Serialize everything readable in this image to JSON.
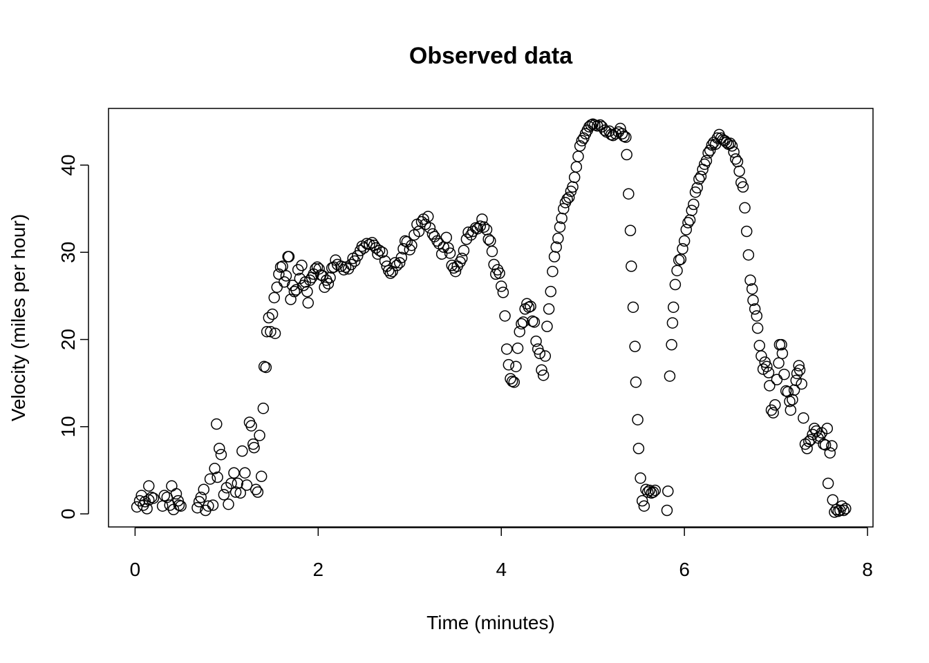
{
  "chart_data": {
    "type": "scatter",
    "title": "Observed data",
    "x_label": "Time (minutes)",
    "y_label": "Velocity (miles per hour)",
    "x": [
      0.02,
      0.05,
      0.07,
      0.09,
      0.11,
      0.13,
      0.15,
      0.15,
      0.18,
      0.2,
      0.3,
      0.32,
      0.35,
      0.38,
      0.4,
      0.42,
      0.45,
      0.47,
      0.48,
      0.5,
      0.68,
      0.7,
      0.72,
      0.75,
      0.77,
      0.8,
      0.82,
      0.85,
      0.87,
      0.89,
      0.9,
      0.92,
      0.94,
      0.97,
      1.0,
      1.02,
      1.05,
      1.08,
      1.1,
      1.12,
      1.15,
      1.17,
      1.2,
      1.22,
      1.25,
      1.27,
      1.29,
      1.3,
      1.32,
      1.34,
      1.36,
      1.38,
      1.4,
      1.41,
      1.43,
      1.44,
      1.46,
      1.48,
      1.5,
      1.52,
      1.53,
      1.55,
      1.57,
      1.59,
      1.61,
      1.63,
      1.65,
      1.67,
      1.68,
      1.7,
      1.72,
      1.74,
      1.76,
      1.78,
      1.8,
      1.82,
      1.84,
      1.86,
      1.88,
      1.89,
      1.91,
      1.93,
      1.95,
      1.97,
      1.99,
      2.01,
      2.03,
      2.05,
      2.07,
      2.09,
      2.11,
      2.13,
      2.15,
      2.17,
      2.19,
      2.21,
      2.25,
      2.28,
      2.3,
      2.33,
      2.36,
      2.38,
      2.4,
      2.43,
      2.46,
      2.48,
      2.5,
      2.53,
      2.56,
      2.59,
      2.61,
      2.63,
      2.65,
      2.67,
      2.7,
      2.73,
      2.75,
      2.77,
      2.79,
      2.81,
      2.84,
      2.86,
      2.89,
      2.91,
      2.93,
      2.95,
      2.97,
      3.0,
      3.02,
      3.05,
      3.08,
      3.1,
      3.13,
      3.15,
      3.17,
      3.2,
      3.22,
      3.25,
      3.27,
      3.3,
      3.32,
      3.35,
      3.37,
      3.4,
      3.42,
      3.44,
      3.46,
      3.48,
      3.5,
      3.52,
      3.55,
      3.57,
      3.59,
      3.62,
      3.64,
      3.67,
      3.69,
      3.72,
      3.74,
      3.77,
      3.79,
      3.81,
      3.84,
      3.86,
      3.88,
      3.9,
      3.92,
      3.94,
      3.96,
      3.98,
      4.0,
      4.02,
      4.04,
      4.06,
      4.08,
      4.1,
      4.12,
      4.14,
      4.16,
      4.18,
      4.2,
      4.22,
      4.24,
      4.26,
      4.28,
      4.3,
      4.32,
      4.34,
      4.36,
      4.38,
      4.4,
      4.42,
      4.44,
      4.46,
      4.48,
      4.5,
      4.52,
      4.54,
      4.56,
      4.58,
      4.6,
      4.62,
      4.64,
      4.66,
      4.68,
      4.7,
      4.72,
      4.74,
      4.76,
      4.78,
      4.8,
      4.82,
      4.84,
      4.86,
      4.88,
      4.9,
      4.92,
      4.94,
      4.96,
      4.98,
      5.0,
      5.02,
      5.05,
      5.08,
      5.1,
      5.13,
      5.15,
      5.18,
      5.2,
      5.22,
      5.25,
      5.28,
      5.3,
      5.32,
      5.34,
      5.36,
      5.37,
      5.39,
      5.41,
      5.42,
      5.44,
      5.46,
      5.47,
      5.49,
      5.5,
      5.52,
      5.54,
      5.56,
      5.58,
      5.6,
      5.62,
      5.64,
      5.66,
      5.68,
      5.81,
      5.82,
      5.84,
      5.86,
      5.87,
      5.88,
      5.9,
      5.92,
      5.94,
      5.96,
      5.98,
      6.0,
      6.02,
      6.04,
      6.06,
      6.08,
      6.1,
      6.12,
      6.14,
      6.16,
      6.18,
      6.2,
      6.22,
      6.24,
      6.26,
      6.28,
      6.3,
      6.32,
      6.34,
      6.36,
      6.38,
      6.4,
      6.42,
      6.44,
      6.46,
      6.48,
      6.5,
      6.52,
      6.54,
      6.56,
      6.58,
      6.6,
      6.62,
      6.64,
      6.66,
      6.68,
      6.7,
      6.72,
      6.74,
      6.75,
      6.77,
      6.79,
      6.8,
      6.82,
      6.84,
      6.86,
      6.88,
      6.9,
      6.92,
      6.93,
      6.95,
      6.97,
      6.99,
      7.01,
      7.03,
      7.04,
      7.06,
      7.07,
      7.09,
      7.11,
      7.13,
      7.15,
      7.16,
      7.18,
      7.2,
      7.22,
      7.23,
      7.25,
      7.26,
      7.28,
      7.3,
      7.32,
      7.34,
      7.36,
      7.38,
      7.4,
      7.42,
      7.44,
      7.46,
      7.48,
      7.5,
      7.52,
      7.54,
      7.56,
      7.57,
      7.59,
      7.61,
      7.62,
      7.64,
      7.66,
      7.68,
      7.7,
      7.72,
      7.74,
      7.76
    ],
    "values": [
      0.8,
      1.5,
      2.1,
      1.0,
      1.4,
      0.6,
      1.6,
      3.2,
      1.9,
      1.8,
      0.9,
      2.1,
      1.9,
      1.0,
      3.2,
      0.5,
      2.3,
      1.5,
      1.0,
      0.9,
      0.7,
      1.4,
      1.9,
      2.8,
      0.4,
      0.9,
      4.0,
      1.0,
      5.2,
      10.3,
      4.2,
      7.5,
      6.8,
      2.2,
      3.0,
      1.1,
      3.5,
      4.7,
      2.5,
      3.5,
      2.4,
      7.2,
      4.7,
      3.3,
      10.5,
      10.1,
      8.0,
      7.6,
      2.8,
      2.5,
      9.0,
      4.3,
      12.1,
      16.9,
      16.8,
      20.9,
      22.5,
      20.9,
      22.9,
      24.8,
      20.7,
      26.0,
      27.5,
      28.3,
      28.4,
      26.6,
      27.3,
      29.5,
      29.5,
      24.6,
      26.2,
      25.5,
      25.7,
      28.0,
      27.0,
      28.5,
      26.2,
      26.6,
      25.5,
      24.2,
      26.8,
      27.1,
      27.5,
      28.1,
      28.3,
      28.1,
      27.4,
      27.3,
      26.0,
      26.8,
      26.4,
      27.1,
      28.2,
      28.3,
      29.1,
      28.6,
      28.4,
      28.0,
      28.3,
      28.1,
      28.6,
      29.3,
      29.0,
      29.6,
      30.2,
      30.7,
      30.5,
      31.0,
      30.9,
      31.1,
      30.8,
      30.5,
      29.8,
      30.2,
      30.0,
      29.0,
      28.4,
      27.9,
      27.6,
      27.8,
      28.8,
      28.5,
      28.8,
      29.4,
      30.4,
      31.3,
      31.2,
      30.3,
      30.8,
      32.0,
      33.2,
      32.4,
      33.5,
      33.8,
      33.2,
      34.1,
      32.8,
      32.1,
      31.8,
      31.3,
      31.0,
      29.8,
      30.6,
      31.7,
      30.5,
      29.9,
      28.5,
      28.2,
      27.8,
      28.4,
      28.9,
      29.3,
      30.2,
      31.5,
      32.3,
      32.0,
      32.4,
      32.8,
      32.7,
      33.0,
      33.8,
      32.9,
      32.6,
      31.5,
      31.3,
      30.1,
      28.6,
      27.5,
      28.0,
      27.6,
      26.1,
      25.4,
      22.7,
      18.9,
      17.1,
      15.5,
      15.2,
      15.1,
      16.9,
      19.0,
      20.9,
      21.8,
      22.0,
      23.5,
      24.1,
      23.7,
      23.8,
      22.1,
      22.0,
      19.8,
      18.9,
      18.4,
      16.5,
      15.9,
      18.1,
      21.5,
      23.5,
      25.5,
      27.8,
      29.5,
      30.6,
      31.6,
      32.9,
      33.9,
      35.0,
      35.7,
      36.1,
      36.3,
      37.0,
      37.5,
      38.6,
      39.8,
      41.0,
      42.2,
      42.8,
      43.1,
      43.6,
      44.0,
      44.4,
      44.6,
      44.7,
      44.6,
      44.5,
      44.6,
      44.4,
      44.0,
      43.8,
      43.9,
      43.5,
      43.4,
      43.6,
      43.8,
      44.2,
      43.6,
      43.3,
      43.2,
      41.2,
      36.7,
      32.5,
      28.4,
      23.7,
      19.2,
      15.1,
      10.8,
      7.5,
      4.1,
      1.5,
      0.9,
      2.8,
      2.5,
      2.7,
      2.4,
      2.5,
      2.7,
      0.4,
      2.6,
      15.8,
      19.4,
      21.9,
      23.7,
      26.3,
      27.9,
      29.1,
      29.2,
      30.4,
      31.3,
      32.6,
      33.4,
      33.7,
      34.8,
      35.5,
      36.9,
      37.4,
      38.4,
      38.7,
      39.5,
      40.1,
      40.5,
      41.4,
      41.7,
      42.3,
      42.6,
      42.4,
      43.1,
      43.5,
      43.1,
      42.9,
      42.8,
      42.6,
      42.4,
      42.5,
      42.2,
      41.5,
      40.7,
      40.4,
      39.3,
      38.0,
      37.5,
      35.1,
      32.4,
      29.7,
      26.8,
      25.8,
      24.5,
      23.5,
      22.7,
      21.3,
      19.3,
      18.1,
      16.6,
      17.4,
      16.9,
      16.2,
      14.7,
      11.9,
      11.6,
      12.5,
      15.4,
      17.3,
      19.4,
      19.4,
      18.4,
      16.0,
      14.1,
      14.0,
      12.9,
      11.9,
      13.1,
      14.2,
      15.3,
      16.1,
      17.0,
      16.5,
      14.9,
      11.0,
      8.0,
      7.5,
      8.3,
      8.5,
      9.1,
      9.8,
      9.5,
      8.7,
      8.9,
      9.3,
      8.0,
      7.9,
      9.8,
      3.5,
      7.0,
      7.8,
      1.6,
      0.2,
      0.5,
      0.3,
      0.4,
      0.9,
      0.4,
      0.6
    ],
    "color": "#000000",
    "xlim": [
      -0.29,
      8.06
    ],
    "ylim": [
      -1.5,
      46.5
    ],
    "xticks": [
      0,
      2,
      4,
      6,
      8
    ],
    "yticks": [
      0,
      10,
      20,
      30,
      40
    ]
  }
}
